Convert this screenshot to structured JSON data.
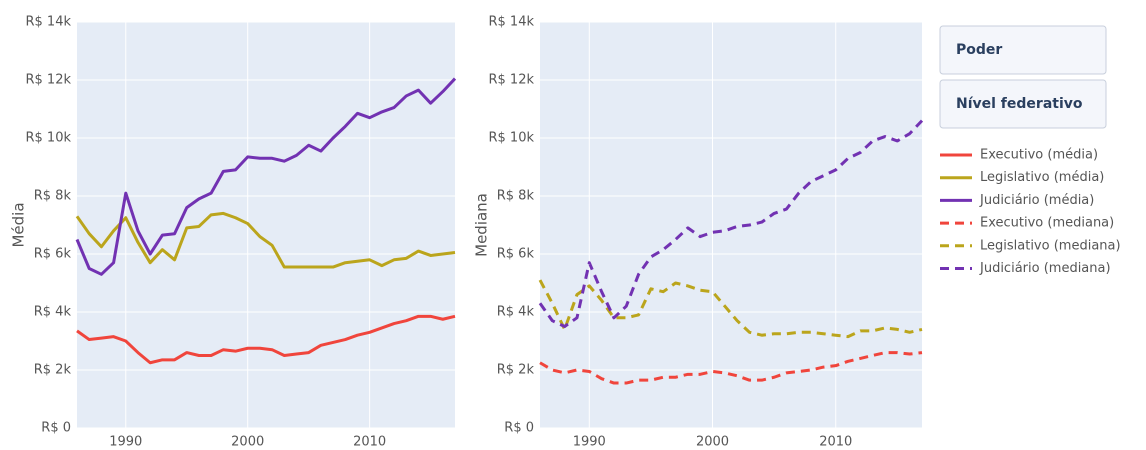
{
  "buttons": [
    "Poder",
    "Nível federativo"
  ],
  "chart_data": [
    {
      "type": "line",
      "ylabel": "Média",
      "grid": true,
      "x": [
        1986,
        1987,
        1988,
        1989,
        1990,
        1991,
        1992,
        1993,
        1994,
        1995,
        1996,
        1997,
        1998,
        1999,
        2000,
        2001,
        2002,
        2003,
        2004,
        2005,
        2006,
        2007,
        2008,
        2009,
        2010,
        2011,
        2012,
        2013,
        2014,
        2015,
        2016,
        2017
      ],
      "xlim": [
        1986,
        2017
      ],
      "xticks": [
        1990,
        2000,
        2010
      ],
      "ylim": [
        0,
        14000
      ],
      "yticks": [
        {
          "value": 0,
          "label": "R$ 0"
        },
        {
          "value": 2000,
          "label": "R$ 2k"
        },
        {
          "value": 4000,
          "label": "R$ 4k"
        },
        {
          "value": 6000,
          "label": "R$ 6k"
        },
        {
          "value": 8000,
          "label": "R$ 8k"
        },
        {
          "value": 10000,
          "label": "R$ 10k"
        },
        {
          "value": 12000,
          "label": "R$ 12k"
        },
        {
          "value": 14000,
          "label": "R$ 14k"
        }
      ],
      "series": [
        {
          "name": "Executivo (média)",
          "color": "#f0453c",
          "line_style": "solid",
          "values": [
            3350,
            3050,
            3100,
            3150,
            3000,
            2600,
            2250,
            2350,
            2350,
            2600,
            2500,
            2500,
            2700,
            2650,
            2750,
            2750,
            2700,
            2500,
            2550,
            2600,
            2850,
            2950,
            3050,
            3200,
            3300,
            3450,
            3600,
            3700,
            3850,
            3850,
            3750,
            3850
          ]
        },
        {
          "name": "Legislativo (média)",
          "color": "#bba51c",
          "line_style": "solid",
          "values": [
            7300,
            6700,
            6250,
            6800,
            7250,
            6400,
            5700,
            6150,
            5800,
            6900,
            6950,
            7350,
            7400,
            7250,
            7050,
            6600,
            6300,
            5550,
            5550,
            5550,
            5550,
            5550,
            5700,
            5750,
            5800,
            5600,
            5800,
            5850,
            6100,
            5950,
            6000,
            6050
          ]
        },
        {
          "name": "Judiciário (média)",
          "color": "#7232b2",
          "line_style": "solid",
          "values": [
            6500,
            5500,
            5300,
            5700,
            8100,
            6800,
            6000,
            6650,
            6700,
            7600,
            7900,
            8100,
            8850,
            8900,
            9350,
            9300,
            9300,
            9200,
            9400,
            9750,
            9550,
            10000,
            10400,
            10850,
            10700,
            10900,
            11050,
            11450,
            11650,
            11200,
            11600,
            12050
          ]
        }
      ]
    },
    {
      "type": "line",
      "ylabel": "Mediana",
      "grid": true,
      "x": [
        1986,
        1987,
        1988,
        1989,
        1990,
        1991,
        1992,
        1993,
        1994,
        1995,
        1996,
        1997,
        1998,
        1999,
        2000,
        2001,
        2002,
        2003,
        2004,
        2005,
        2006,
        2007,
        2008,
        2009,
        2010,
        2011,
        2012,
        2013,
        2014,
        2015,
        2016,
        2017
      ],
      "xlim": [
        1986,
        2017
      ],
      "xticks": [
        1990,
        2000,
        2010
      ],
      "ylim": [
        0,
        14000
      ],
      "yticks": [
        {
          "value": 0,
          "label": "R$ 0"
        },
        {
          "value": 2000,
          "label": "R$ 2k"
        },
        {
          "value": 4000,
          "label": "R$ 4k"
        },
        {
          "value": 6000,
          "label": "R$ 6k"
        },
        {
          "value": 8000,
          "label": "R$ 8k"
        },
        {
          "value": 10000,
          "label": "R$ 10k"
        },
        {
          "value": 12000,
          "label": "R$ 12k"
        },
        {
          "value": 14000,
          "label": "R$ 14k"
        }
      ],
      "series": [
        {
          "name": "Executivo (mediana)",
          "color": "#f0453c",
          "line_style": "dash",
          "values": [
            2250,
            2000,
            1900,
            2000,
            1950,
            1700,
            1550,
            1550,
            1650,
            1650,
            1750,
            1750,
            1850,
            1850,
            1950,
            1900,
            1800,
            1650,
            1650,
            1750,
            1900,
            1950,
            2000,
            2100,
            2150,
            2300,
            2400,
            2500,
            2600,
            2600,
            2550,
            2600
          ]
        },
        {
          "name": "Legislativo (mediana)",
          "color": "#bba51c",
          "line_style": "dash",
          "values": [
            5100,
            4300,
            3400,
            4600,
            4900,
            4400,
            3800,
            3800,
            3900,
            4800,
            4700,
            5000,
            4900,
            4750,
            4700,
            4200,
            3700,
            3300,
            3200,
            3250,
            3250,
            3300,
            3300,
            3250,
            3200,
            3150,
            3350,
            3350,
            3450,
            3400,
            3300,
            3400
          ]
        },
        {
          "name": "Judiciário (mediana)",
          "color": "#7232b2",
          "line_style": "dash",
          "values": [
            4300,
            3700,
            3500,
            3800,
            5700,
            4700,
            3800,
            4200,
            5300,
            5900,
            6150,
            6500,
            6900,
            6600,
            6750,
            6800,
            6950,
            7000,
            7100,
            7400,
            7550,
            8100,
            8500,
            8700,
            8900,
            9300,
            9500,
            9900,
            10050,
            9900,
            10150,
            10600
          ]
        }
      ]
    }
  ]
}
